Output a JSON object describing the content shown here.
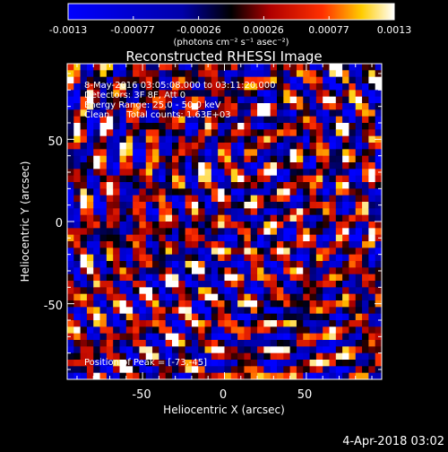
{
  "colorbar": {
    "tick_labels": [
      "-0.0013",
      "-0.00077",
      "-0.00026",
      "0.00026",
      "0.00077",
      "0.0013"
    ],
    "unit_label": "(photons cm⁻² s⁻¹ asec⁻²)"
  },
  "chart_data": {
    "type": "heatmap",
    "title": "Reconstructed RHESSI Image",
    "xlabel": "Heliocentric X (arcsec)",
    "ylabel": "Heliocentric Y (arcsec)",
    "xlim": [
      -96,
      96
    ],
    "ylim": [
      -96,
      96
    ],
    "x_ticks": [
      -50,
      0,
      50
    ],
    "y_ticks": [
      50,
      0,
      -50
    ],
    "colorbar_range": [
      -0.0013,
      0.0013
    ],
    "grid": false,
    "info_lines": [
      "8-May-2016 03:05:08.000 to 03:11:20.000",
      "Detectors: 3F 8F, Att 0",
      "Energy Range: 25.0 - 50.0 keV",
      "Clean      Total counts: 1.63E+03"
    ],
    "peak_label": "Position of Peak = [-73,-45]",
    "peak_position": [
      -73,
      -45
    ]
  },
  "footer_timestamp": "4-Apr-2018 03:02",
  "palette": [
    "#0000ff",
    "#000000",
    "#ff0000",
    "#ffff00",
    "#ffffff"
  ]
}
